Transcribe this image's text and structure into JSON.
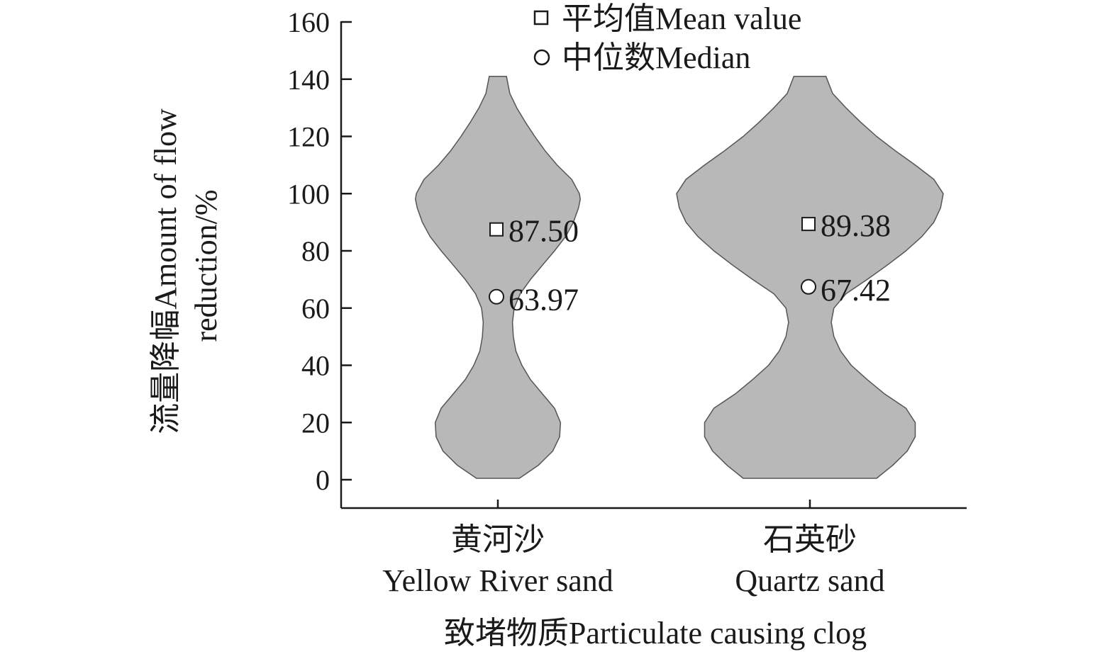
{
  "chart_data": {
    "type": "violin",
    "xlabel": "致堵物质Particulate causing clog",
    "ylabel": "流量降幅Amount of flow reduction/%",
    "ylabel_lines": [
      "流量降幅Amount of flow",
      "reduction/%"
    ],
    "ylim": [
      -10,
      160
    ],
    "yticks": [
      0,
      20,
      40,
      60,
      80,
      100,
      120,
      140,
      160
    ],
    "grid": false,
    "legend_position": "top",
    "legend": [
      {
        "marker": "square",
        "label": "平均值Mean value"
      },
      {
        "marker": "circle",
        "label": "中位数Median"
      }
    ],
    "fill_color": "#b8b8b8",
    "categories": [
      {
        "label_zh": "黄河沙",
        "label_en": "Yellow River sand"
      },
      {
        "label_zh": "石英砂",
        "label_en": "Quartz sand"
      }
    ],
    "series": [
      {
        "category": "黄河沙",
        "mean": 87.5,
        "median": 63.97,
        "mean_label": "87.50",
        "median_label": "63.97",
        "min": 0.5,
        "max": 141,
        "density": [
          [
            0.5,
            0.25
          ],
          [
            5,
            0.47
          ],
          [
            10,
            0.64
          ],
          [
            15,
            0.72
          ],
          [
            20,
            0.73
          ],
          [
            25,
            0.66
          ],
          [
            30,
            0.52
          ],
          [
            35,
            0.38
          ],
          [
            40,
            0.28
          ],
          [
            45,
            0.21
          ],
          [
            50,
            0.18
          ],
          [
            55,
            0.17
          ],
          [
            60,
            0.19
          ],
          [
            65,
            0.26
          ],
          [
            70,
            0.38
          ],
          [
            75,
            0.52
          ],
          [
            80,
            0.66
          ],
          [
            85,
            0.79
          ],
          [
            90,
            0.88
          ],
          [
            95,
            0.94
          ],
          [
            98,
            0.96
          ],
          [
            100,
            0.95
          ],
          [
            105,
            0.86
          ],
          [
            110,
            0.69
          ],
          [
            115,
            0.55
          ],
          [
            120,
            0.43
          ],
          [
            125,
            0.32
          ],
          [
            130,
            0.22
          ],
          [
            135,
            0.14
          ],
          [
            141,
            0.1
          ]
        ]
      },
      {
        "category": "石英砂",
        "mean": 89.38,
        "median": 67.42,
        "mean_label": "89.38",
        "median_label": "67.42",
        "min": 0.5,
        "max": 141,
        "density": [
          [
            0.5,
            0.5
          ],
          [
            5,
            0.62
          ],
          [
            10,
            0.73
          ],
          [
            15,
            0.79
          ],
          [
            20,
            0.79
          ],
          [
            25,
            0.72
          ],
          [
            30,
            0.56
          ],
          [
            35,
            0.43
          ],
          [
            40,
            0.31
          ],
          [
            45,
            0.23
          ],
          [
            50,
            0.18
          ],
          [
            55,
            0.16
          ],
          [
            60,
            0.18
          ],
          [
            65,
            0.27
          ],
          [
            70,
            0.43
          ],
          [
            75,
            0.58
          ],
          [
            80,
            0.72
          ],
          [
            85,
            0.84
          ],
          [
            90,
            0.93
          ],
          [
            95,
            0.98
          ],
          [
            100,
            1.0
          ],
          [
            105,
            0.93
          ],
          [
            110,
            0.79
          ],
          [
            115,
            0.64
          ],
          [
            120,
            0.5
          ],
          [
            125,
            0.38
          ],
          [
            130,
            0.27
          ],
          [
            135,
            0.17
          ],
          [
            141,
            0.12
          ]
        ]
      }
    ]
  }
}
